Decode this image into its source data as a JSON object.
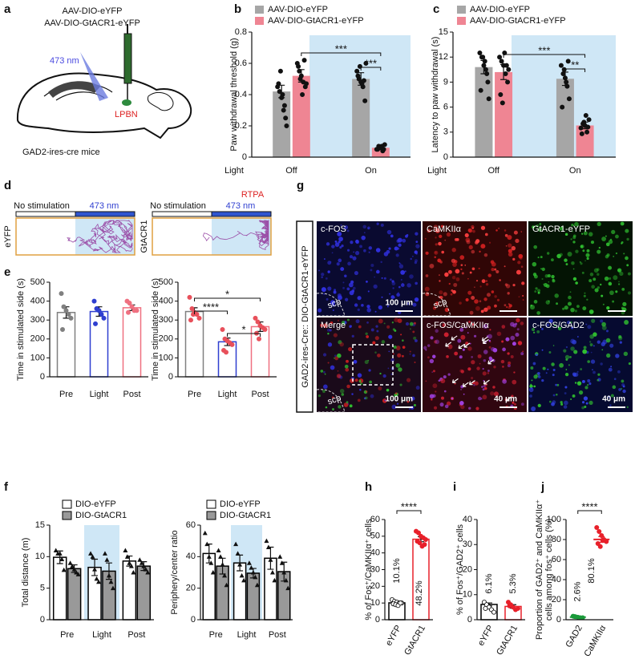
{
  "chart_data": [
    {
      "type": "bar",
      "panel_label": "b",
      "ylabel": "Paw withdrawal threshold (g)",
      "xlabel": "Light",
      "categories": [
        "Off",
        "On"
      ],
      "series": [
        {
          "name": "AAV-DIO-eYFP",
          "color": "#a6a6a6",
          "values": [
            0.42,
            0.5
          ],
          "errors": [
            0.04,
            0.04
          ],
          "points": [
            [
              0.45,
              0.42,
              0.38,
              0.3,
              0.25,
              0.47,
              0.55,
              0.4,
              0.33,
              0.2
            ],
            [
              0.55,
              0.5,
              0.48,
              0.45,
              0.36,
              0.52,
              0.58,
              0.47,
              0.49,
              0.6
            ]
          ]
        },
        {
          "name": "AAV-DIO-GtACR1-eYFP",
          "color": "#ef8593",
          "values": [
            0.52,
            0.06
          ],
          "errors": [
            0.04,
            0.01
          ],
          "points": [
            [
              0.6,
              0.55,
              0.52,
              0.48,
              0.45,
              0.58,
              0.5,
              0.4,
              0.62,
              0.47
            ],
            [
              0.05,
              0.07,
              0.06,
              0.04,
              0.08,
              0.05,
              0.06,
              0.07,
              0.05
            ]
          ]
        }
      ],
      "ylim": [
        0,
        0.8
      ],
      "yticks": [
        0,
        0.2,
        0.4,
        0.6,
        0.8
      ],
      "annotations": [
        "***",
        "***"
      ]
    },
    {
      "type": "bar",
      "panel_label": "c",
      "ylabel": "Latency to paw withdrawal (s)",
      "xlabel": "Light",
      "categories": [
        "Off",
        "On"
      ],
      "series": [
        {
          "name": "AAV-DIO-eYFP",
          "color": "#a6a6a6",
          "values": [
            10.8,
            9.4
          ],
          "errors": [
            0.8,
            0.8
          ],
          "points": [
            [
              12.5,
              12,
              11,
              10.5,
              9,
              8,
              12,
              11.5,
              10,
              7
            ],
            [
              11,
              10,
              9.5,
              8.5,
              7,
              6,
              10.5,
              9,
              11.5
            ]
          ]
        },
        {
          "name": "AAV-DIO-GtACR1-eYFP",
          "color": "#ef8593",
          "values": [
            10.2,
            3.8
          ],
          "errors": [
            0.9,
            0.4
          ],
          "points": [
            [
              12,
              11.5,
              11,
              10,
              9,
              7.5,
              6.5,
              12.5,
              11,
              10.5
            ],
            [
              3.5,
              4,
              3.8,
              3,
              4.5,
              2.8,
              4.2,
              5,
              3.6
            ]
          ]
        }
      ],
      "ylim": [
        0,
        15
      ],
      "yticks": [
        0,
        3,
        6,
        9,
        12,
        15
      ],
      "annotations": [
        "***",
        "**"
      ]
    },
    {
      "type": "bar",
      "panel_label": "e",
      "ylabel": "Time in stimulated side (s)",
      "categories": [
        "Pre",
        "Light",
        "Post"
      ],
      "values": [
        340,
        345,
        365
      ],
      "errors": [
        30,
        25,
        15
      ],
      "points": [
        [
          440,
          370,
          350,
          330,
          310,
          250
        ],
        [
          400,
          360,
          350,
          330,
          310,
          280
        ],
        [
          400,
          390,
          370,
          350,
          350,
          340
        ]
      ],
      "edgecolors": [
        "#808080",
        "#2f3fd0",
        "#ef7080"
      ],
      "ylim": [
        0,
        500
      ],
      "yticks": [
        0,
        100,
        200,
        300,
        400,
        500
      ]
    },
    {
      "type": "bar",
      "ylabel": "Time in stimulated side (s)",
      "categories": [
        "Pre",
        "Light",
        "Post"
      ],
      "values": [
        345,
        185,
        265
      ],
      "errors": [
        20,
        20,
        25
      ],
      "points": [
        [
          420,
          360,
          340,
          330,
          310,
          300,
          330
        ],
        [
          250,
          200,
          190,
          180,
          170,
          140,
          130
        ],
        [
          310,
          290,
          270,
          260,
          250,
          230,
          200
        ]
      ],
      "edgecolors": [
        "#808080",
        "#2f3fd0",
        "#ef7080"
      ],
      "point_colors": [
        "#e8505b",
        "#e8505b",
        "#e8505b"
      ],
      "ylim": [
        0,
        500
      ],
      "yticks": [
        0,
        100,
        200,
        300,
        400,
        500
      ],
      "annotations": [
        "*",
        "****",
        "*"
      ]
    },
    {
      "type": "bar",
      "panel_label": "f",
      "ylabel": "Total distance (m)",
      "categories": [
        "Pre",
        "Light",
        "Post"
      ],
      "edgecolor": "#000000",
      "marker": "triangle",
      "series": [
        {
          "name": "DIO-eYFP",
          "color": "#ffffff",
          "values": [
            9.9,
            8.3,
            9.3
          ],
          "errors": [
            1,
            1.3,
            0.8
          ],
          "points": [
            [
              11,
              10.5,
              10.5,
              9.6,
              7.9
            ],
            [
              10.5,
              10,
              8,
              6.5,
              6
            ],
            [
              11,
              10,
              9,
              8.5,
              7.5
            ]
          ]
        },
        {
          "name": "DIO-GtACR1",
          "color": "#999999",
          "values": [
            8.1,
            7.7,
            8.5
          ],
          "errors": [
            0.6,
            1.3,
            0.7
          ],
          "points": [
            [
              9,
              8.5,
              8,
              7.5,
              7.2
            ],
            [
              10.5,
              9.5,
              7,
              6,
              5
            ],
            [
              9.5,
              9,
              8.5,
              8,
              7.5
            ]
          ]
        }
      ],
      "ylim": [
        0,
        15
      ],
      "yticks": [
        0,
        5,
        10,
        15
      ]
    },
    {
      "type": "bar",
      "ylabel": "Periphery/center ratio",
      "categories": [
        "Pre",
        "Light",
        "Post"
      ],
      "edgecolor": "#000000",
      "marker": "triangle",
      "series": [
        {
          "name": "DIO-eYFP",
          "color": "#ffffff",
          "values": [
            42,
            36,
            39
          ],
          "errors": [
            6,
            5,
            7
          ],
          "points": [
            [
              55,
              48,
              40,
              36,
              30
            ],
            [
              48,
              42,
              35,
              28,
              25
            ],
            [
              50,
              46,
              38,
              30,
              25
            ]
          ]
        },
        {
          "name": "DIO-GtACR1",
          "color": "#999999",
          "values": [
            34,
            29.5,
            30.5
          ],
          "errors": [
            5,
            3,
            6
          ],
          "points": [
            [
              44,
              40,
              35,
              28,
              22
            ],
            [
              36,
              33,
              30,
              27,
              22
            ],
            [
              40,
              36,
              30,
              25,
              20
            ]
          ]
        }
      ],
      "ylim": [
        0,
        60
      ],
      "yticks": [
        0,
        20,
        40,
        60
      ]
    },
    {
      "type": "bar",
      "panel_label": "h",
      "ylabel": "% of Fos⁺/CaMKIIα⁺ cells",
      "categories": [
        "eYFP",
        "GtACR1"
      ],
      "values": [
        10.1,
        48.2
      ],
      "value_labels": [
        "10.1%",
        "48.2%"
      ],
      "errors": [
        0.8,
        1.5
      ],
      "points": [
        [
          12,
          11,
          10.5,
          10,
          10,
          9.5,
          9,
          8.5,
          10
        ],
        [
          53,
          52,
          50,
          49,
          48,
          47,
          46,
          44,
          45
        ]
      ],
      "edgecolors": [
        "#000000",
        "#e8202a"
      ],
      "ylim": [
        0,
        60
      ],
      "yticks": [
        0,
        10,
        20,
        30,
        40,
        50,
        60
      ],
      "annotations": [
        "****"
      ]
    },
    {
      "type": "bar",
      "panel_label": "i",
      "ylabel": "% of Fos⁺/GAD2⁺ cells",
      "categories": [
        "eYFP",
        "GtACR1"
      ],
      "values": [
        6.1,
        5.3
      ],
      "value_labels": [
        "6.1%",
        "5.3%"
      ],
      "errors": [
        0.6,
        0.7
      ],
      "points": [
        [
          7,
          6,
          5,
          4,
          3,
          4.5
        ],
        [
          7,
          6,
          5,
          4,
          4.5,
          5.5
        ]
      ],
      "edgecolors": [
        "#000000",
        "#e8202a"
      ],
      "ylim": [
        0,
        40
      ],
      "yticks": [
        0,
        10,
        20,
        30,
        40
      ]
    },
    {
      "type": "dot",
      "panel_label": "j",
      "ylabel": [
        "Proportion of GAD2⁺ and CaMKIIα⁺",
        "cells among fos⁺ cells (%)"
      ],
      "categories": [
        "GAD2",
        "CaMKIIα"
      ],
      "values": [
        2.6,
        80.1
      ],
      "value_labels": [
        "2.6%",
        "80.1%"
      ],
      "errors": [
        0.5,
        2.8
      ],
      "points": [
        [
          3.5,
          3,
          2.5,
          2,
          2,
          3.2
        ],
        [
          92,
          88,
          84,
          80,
          78,
          76,
          73,
          79
        ]
      ],
      "edgecolors": [
        "#1a9a3a",
        "#e8202a"
      ],
      "ylim": [
        0,
        100
      ],
      "yticks": [
        0,
        20,
        40,
        60,
        80,
        100
      ],
      "annotations": [
        "****"
      ]
    }
  ],
  "diagram_a": {
    "panel_label": "a",
    "lines": [
      "AAV-DIO-eYFP",
      "AAV-DIO-GtACR1-eYFP"
    ],
    "light": "473 nm",
    "target": "LPBN",
    "mouse": "GAD2-ires-cre mice"
  },
  "tracking_d": {
    "panel_label": "d",
    "title": "RTPA",
    "groups": [
      "eYFP",
      "GtACR1"
    ],
    "sides": [
      "No stimulation",
      "473 nm",
      "No stimulation",
      "473 nm"
    ]
  },
  "images_g": {
    "panel_label": "g",
    "title": "GAD2-ires-Cre:: DIO-GtACR1-eYFP",
    "tiles": [
      "c-FOS",
      "CaMKIIα",
      "GtACR1-eYFP",
      "Merge",
      "c-FOS/CaMKIIα",
      "c-FOS/GAD2"
    ],
    "region_labels": [
      "scp",
      "scp",
      "scp"
    ],
    "scale_bars": [
      "100 μm",
      "100 μm",
      "40 μm",
      "40 μm"
    ]
  }
}
